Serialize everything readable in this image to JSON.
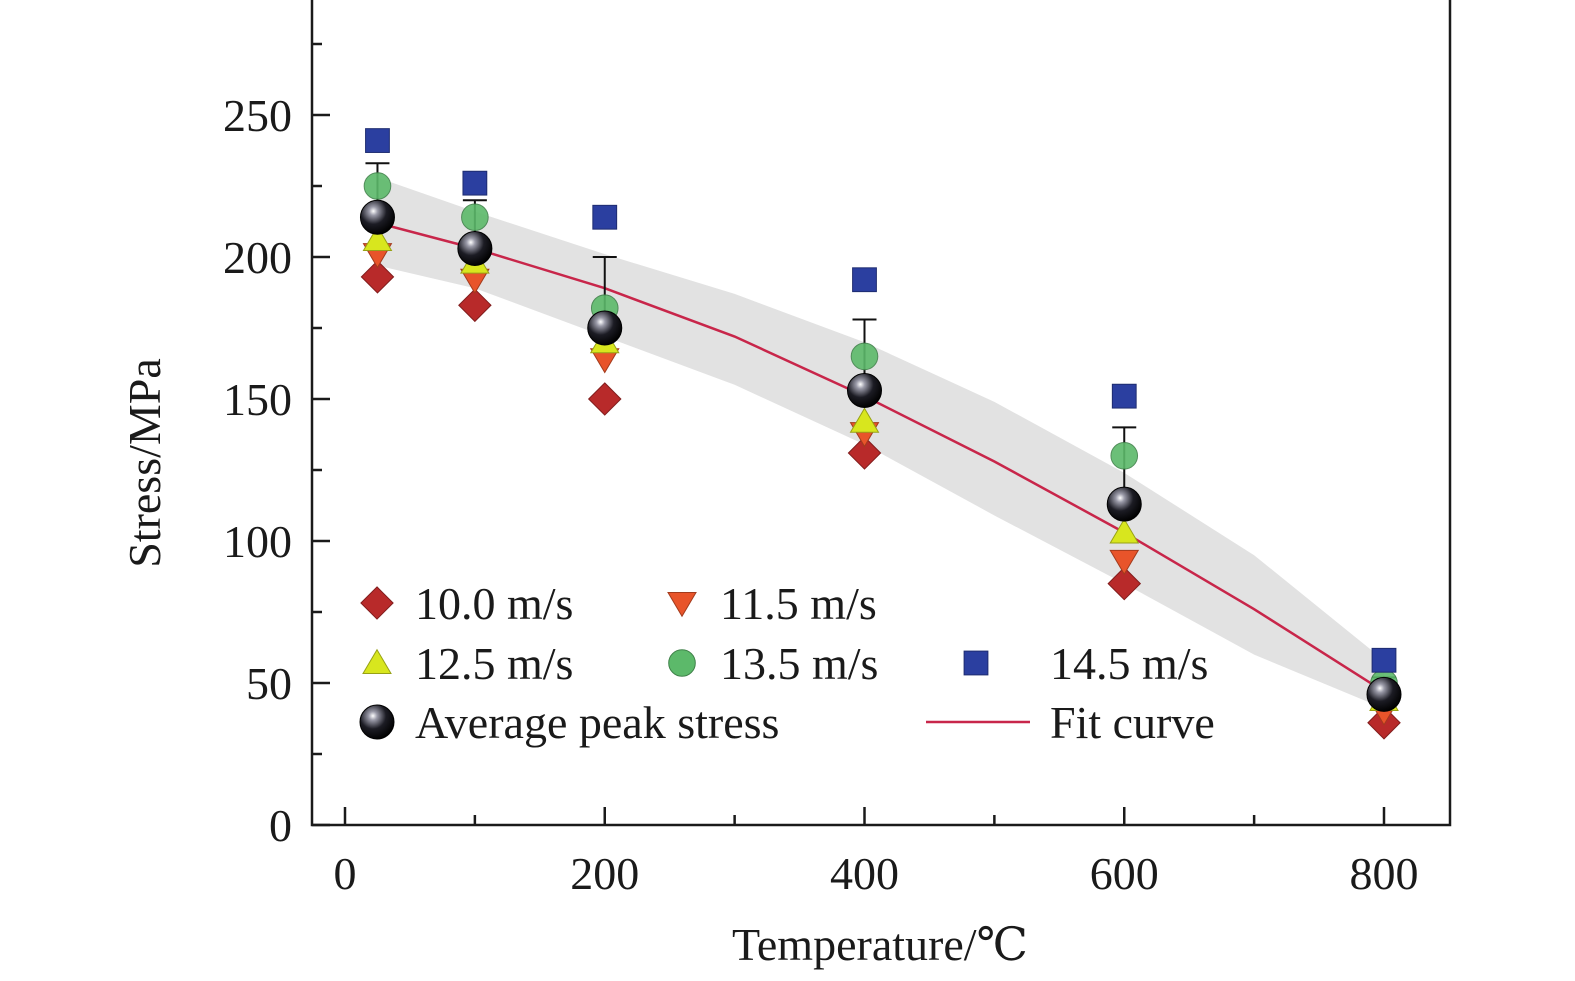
{
  "chart_data": {
    "type": "scatter",
    "title": "",
    "xlabel": "Temperature/℃",
    "ylabel": "Stress/MPa",
    "xlim": [
      -25,
      850
    ],
    "ylim": [
      0,
      290
    ],
    "x_ticks": [
      0,
      200,
      400,
      600,
      800
    ],
    "x_minor_ticks": [
      100,
      300,
      500,
      700
    ],
    "y_ticks": [
      0,
      50,
      100,
      150,
      200,
      250
    ],
    "grid": false,
    "legend_position": "bottom-left",
    "series": [
      {
        "name": "10.0 m/s",
        "marker": "diamond",
        "color": "#b82a2a",
        "x": [
          25,
          100,
          200,
          400,
          600,
          800
        ],
        "y": [
          193,
          183,
          150,
          131,
          85,
          36
        ]
      },
      {
        "name": "11.5 m/s",
        "marker": "triangle-down",
        "color": "#e8542a",
        "x": [
          25,
          100,
          200,
          400,
          600,
          800
        ],
        "y": [
          201,
          192,
          164,
          138,
          93,
          40
        ]
      },
      {
        "name": "12.5 m/s",
        "marker": "triangle-up",
        "color": "#d8e61e",
        "x": [
          25,
          100,
          200,
          400,
          600,
          800
        ],
        "y": [
          206,
          198,
          170,
          142,
          103,
          44
        ]
      },
      {
        "name": "13.5 m/s",
        "marker": "circle",
        "color": "#5cb96a",
        "x": [
          25,
          100,
          200,
          400,
          600,
          800
        ],
        "y": [
          225,
          214,
          182,
          165,
          130,
          50
        ]
      },
      {
        "name": "14.5 m/s",
        "marker": "square",
        "color": "#2b3fa0",
        "x": [
          25,
          100,
          200,
          400,
          600,
          800
        ],
        "y": [
          241,
          226,
          214,
          192,
          151,
          58
        ]
      }
    ],
    "average": {
      "name": "Average peak stress",
      "color": "#111111",
      "x": [
        25,
        100,
        200,
        400,
        600,
        800
      ],
      "y": [
        214,
        203,
        175,
        153,
        113,
        46
      ],
      "error_upper": [
        233,
        220,
        200,
        178,
        140,
        52
      ]
    },
    "fit": {
      "name": "Fit curve",
      "color": "#c8264a",
      "x": [
        25,
        100,
        200,
        300,
        400,
        500,
        600,
        700,
        800
      ],
      "y": [
        212,
        203,
        189,
        172,
        151,
        128,
        103,
        76,
        47
      ]
    },
    "band": {
      "color": "#e2e2e2",
      "x": [
        25,
        100,
        200,
        300,
        400,
        500,
        600,
        700,
        800
      ],
      "upper": [
        228,
        216,
        201,
        187,
        170,
        149,
        124,
        95,
        58
      ],
      "lower": [
        197,
        189,
        172,
        155,
        134,
        109,
        85,
        60,
        41
      ]
    }
  }
}
